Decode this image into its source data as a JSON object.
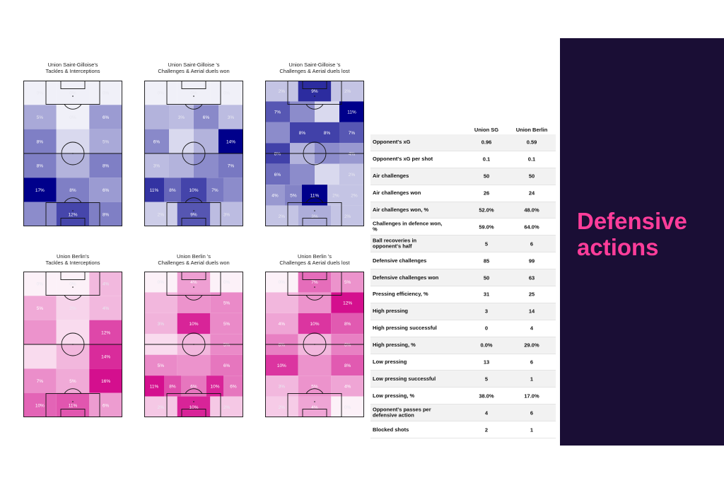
{
  "panel": {
    "title_line1": "Defensive",
    "title_line2": "actions"
  },
  "colors": {
    "sg_base": "#00008b",
    "berlin_base": "#d40f8e",
    "panel_bg": "#1a0e35",
    "title_color": "#ff3d9a"
  },
  "chart_data": [
    {
      "type": "heatmap",
      "title_line1": "Union Saint-Gilloise's",
      "title_line2": "Tackles & Interceptions",
      "color": "#00008b",
      "grid": [
        [
          "0%",
          "0%",
          "0%"
        ],
        [
          "5%",
          "0%",
          "6%"
        ],
        [
          "8%",
          "",
          "5%"
        ],
        [
          "8%",
          "",
          "8%"
        ],
        [
          "17%",
          "8%",
          "6%"
        ],
        [
          "",
          "12%",
          "8%"
        ]
      ]
    },
    {
      "type": "heatmap",
      "title_line1": "Union Saint-Gilloise 's",
      "title_line2": "Challenges & Aerial duels won",
      "color": "#00008b",
      "grid": [
        [
          "0%",
          "0%",
          "0%"
        ],
        [
          "",
          "3%",
          "6%",
          "3%"
        ],
        [
          "6%",
          "",
          "",
          "14%"
        ],
        [
          "3%",
          "",
          "",
          "7%"
        ],
        [
          "11%",
          "8%",
          "10%",
          "7%",
          ""
        ],
        [
          "2%",
          "9%",
          "3%"
        ]
      ]
    },
    {
      "type": "heatmap",
      "title_line1": "Union Saint-Gilloise 's",
      "title_line2": "Challenges & Aerial duels lost",
      "color": "#00008b",
      "grid": [
        [
          "2%",
          "9%",
          "2%"
        ],
        [
          "7%",
          "",
          "",
          "11%"
        ],
        [
          "",
          "8%",
          "8%",
          "7%"
        ],
        [
          "8%",
          "",
          "",
          "4%"
        ],
        [
          "6%",
          "",
          "",
          "2%"
        ],
        [
          "4%",
          "5%",
          "11%",
          "2%",
          "2%"
        ],
        [
          "2%",
          "3%",
          "2%"
        ]
      ]
    },
    {
      "type": "heatmap",
      "title_line1": "Union Berlin's",
      "title_line2": "Tackles & Interceptions",
      "color": "#d40f8e",
      "grid": [
        [
          "0%",
          "0%",
          "4%"
        ],
        [
          "5%",
          "2%",
          "4%"
        ],
        [
          "",
          "",
          "12%"
        ],
        [
          "",
          "",
          "14%"
        ],
        [
          "7%",
          "5%",
          "16%"
        ],
        [
          "10%",
          "11%",
          "6%"
        ]
      ]
    },
    {
      "type": "heatmap",
      "title_line1": "Union Berlin 's",
      "title_line2": "Challenges & Aerial duels won",
      "color": "#d40f8e",
      "grid": [
        [
          "0%",
          "4%",
          "0%"
        ],
        [
          "",
          "",
          "5%"
        ],
        [
          "3%",
          "10%",
          "5%"
        ],
        [
          "",
          "",
          "5%"
        ],
        [
          "5%",
          "",
          "6%"
        ],
        [
          "11%",
          "8%",
          "6%",
          "10%",
          "6%"
        ],
        [
          "2%",
          "10%",
          "2%"
        ]
      ]
    },
    {
      "type": "heatmap",
      "title_line1": "Union Berlin 's",
      "title_line2": "Challenges & Aerial duels lost",
      "color": "#d40f8e",
      "grid": [
        [
          "0%",
          "7%",
          "5%"
        ],
        [
          "",
          "",
          "12%"
        ],
        [
          "4%",
          "10%",
          "8%"
        ],
        [
          "6%",
          "",
          "6%"
        ],
        [
          "10%",
          "",
          "8%"
        ],
        [
          "3%",
          "5%",
          "4%"
        ],
        [
          "2%",
          "4%",
          "0%"
        ]
      ]
    },
    {
      "type": "table",
      "columns": [
        "",
        "Union SG",
        "Union Berlin"
      ],
      "rows": [
        [
          "Opponent's xG",
          "0.96",
          "0.59"
        ],
        [
          "Opponent's xG per shot",
          "0.1",
          "0.1"
        ],
        [
          "Air challenges",
          "50",
          "50"
        ],
        [
          "Air challenges won",
          "26",
          "24"
        ],
        [
          "Air challenges won, %",
          "52.0%",
          "48.0%"
        ],
        [
          "Challenges in defence won, %",
          "59.0%",
          "64.0%"
        ],
        [
          "Ball recoveries in opponent's half",
          "5",
          "6"
        ],
        [
          "Defensive challenges",
          "85",
          "99"
        ],
        [
          "Defensive challenges won",
          "50",
          "63"
        ],
        [
          "Pressing efficiency, %",
          "31",
          "25"
        ],
        [
          "High pressing",
          "3",
          "14"
        ],
        [
          "High pressing successful",
          "0",
          "4"
        ],
        [
          "High pressing, %",
          "0.0%",
          "29.0%"
        ],
        [
          "Low pressing",
          "13",
          "6"
        ],
        [
          "Low pressing successful",
          "5",
          "1"
        ],
        [
          "Low pressing, %",
          "38.0%",
          "17.0%"
        ],
        [
          "Opponent's passes per defensive action",
          "4",
          "6"
        ],
        [
          "Blocked shots",
          "2",
          "1"
        ]
      ]
    }
  ]
}
